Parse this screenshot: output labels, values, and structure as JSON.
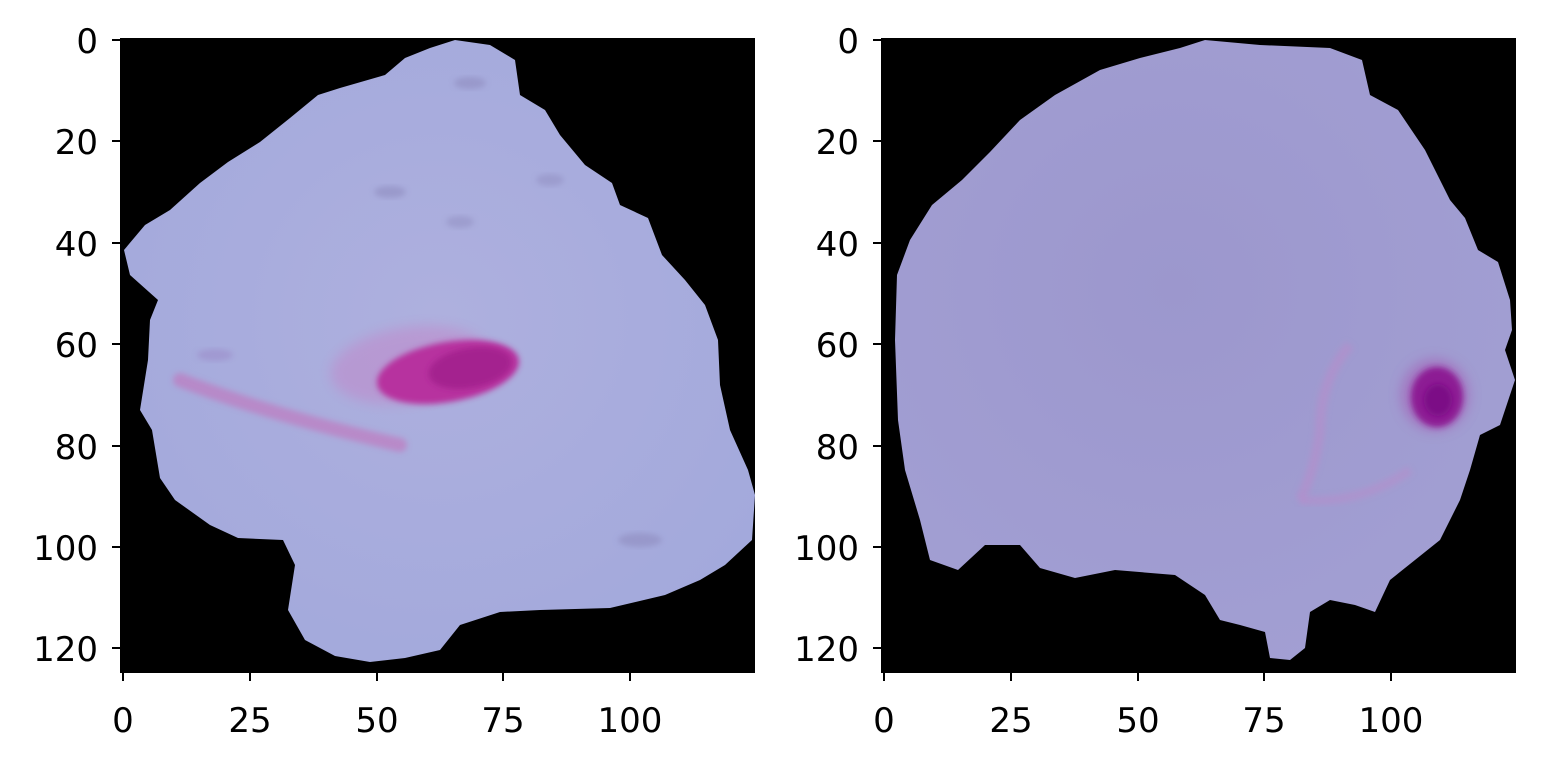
{
  "panels": [
    {
      "name": "left-cell-panel",
      "subject": "parasitized red blood cell with a dark magenta ring-stage parasite and a faint streak",
      "x_ticks": [
        "0",
        "25",
        "50",
        "75",
        "100"
      ],
      "y_ticks": [
        "0",
        "20",
        "40",
        "60",
        "80",
        "100",
        "120"
      ],
      "x_range": [
        0,
        125
      ],
      "y_range": [
        0,
        125
      ],
      "colors": {
        "background": "#000000",
        "cell": "#a9a9d9",
        "stain": "#b23aa0"
      }
    },
    {
      "name": "right-cell-panel",
      "subject": "red blood cell with a small dark purple inclusion near the right edge",
      "x_ticks": [
        "0",
        "25",
        "50",
        "75",
        "100"
      ],
      "y_ticks": [
        "0",
        "20",
        "40",
        "60",
        "80",
        "100",
        "120"
      ],
      "x_range": [
        0,
        125
      ],
      "y_range": [
        0,
        125
      ],
      "colors": {
        "background": "#000000",
        "cell": "#9a96cc",
        "stain": "#8a1c92"
      }
    }
  ]
}
